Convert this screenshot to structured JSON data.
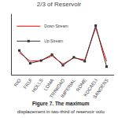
{
  "chart_data": {
    "type": "line",
    "title": "2/3 of Reservoir",
    "categories": [
      "RIO",
      "FRUI",
      "HOLLS",
      "LOMA",
      "TRINIDAD",
      "IMPERIAL",
      "ROME",
      "KOCAELI",
      "SANDERS"
    ],
    "series": [
      {
        "name": "Down Stream",
        "color": "#ff0000",
        "marker": "none",
        "values": [
          3.8,
          2.5,
          2.6,
          3.3,
          2.1,
          3.0,
          2.7,
          7.5,
          2.5
        ]
      },
      {
        "name": "Up Stream",
        "color": "#333333",
        "marker": "square",
        "values": [
          4.1,
          2.2,
          2.6,
          3.5,
          1.9,
          3.1,
          2.5,
          7.8,
          1.7
        ]
      }
    ],
    "ylim": [
      0.5,
      9.5
    ],
    "tick_labels": "x",
    "grid": false,
    "legend": "upper left",
    "annotations": [
      "Figure 7. The maximum",
      "displacement in two-third of reservoir volu"
    ]
  }
}
